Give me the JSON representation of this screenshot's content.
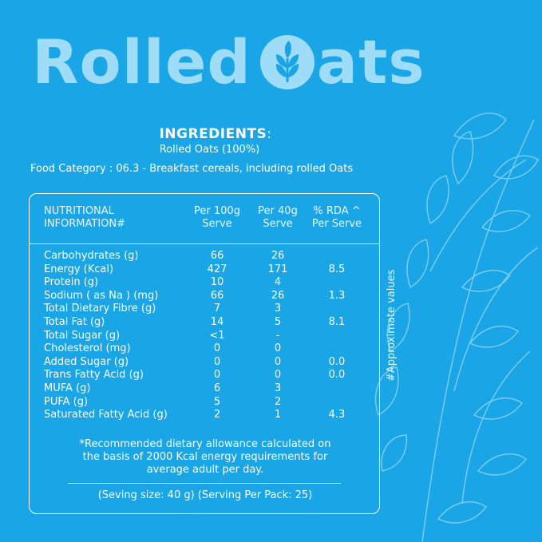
{
  "title": {
    "prefix": "Rolled ",
    "suffix": "ats"
  },
  "ingredients": {
    "heading": "INGREDIENTS",
    "colon": ":",
    "value": "Rolled Oats  (100%)"
  },
  "food_category": "Food Category : 06.3 - Breakfast cereals, including rolled Oats",
  "table": {
    "headers": {
      "nutritional_line1": "NUTRITIONAL",
      "nutritional_line2": "INFORMATION#",
      "per100_line1": "Per 100g",
      "per100_line2": "Serve",
      "per40_line1": "Per 40g",
      "per40_line2": "Serve",
      "rda_line1": "% RDA ^",
      "rda_line2": "Per Serve"
    },
    "rows": [
      {
        "name": "Carbohydrates (g)",
        "per100": "66",
        "per40": "26",
        "rda": ""
      },
      {
        "name": "Energy (Kcal)",
        "per100": "427",
        "per40": "171",
        "rda": "8.5"
      },
      {
        "name": "Protein (g)",
        "per100": "10",
        "per40": "4",
        "rda": ""
      },
      {
        "name": "Sodium ( as Na ) (mg)",
        "per100": "66",
        "per40": "26",
        "rda": "1.3"
      },
      {
        "name": "Total Dietary Fibre (g)",
        "per100": "7",
        "per40": "3",
        "rda": ""
      },
      {
        "name": "Total Fat (g)",
        "per100": "14",
        "per40": "5",
        "rda": "8.1"
      },
      {
        "name": "Total Sugar (g)",
        "per100": "<1",
        "per40": "-",
        "rda": ""
      },
      {
        "name": "Cholesterol (mg)",
        "per100": "0",
        "per40": "0",
        "rda": ""
      },
      {
        "name": "Added Sugar (g)",
        "per100": "0",
        "per40": "0",
        "rda": "0.0"
      },
      {
        "name": "Trans Fatty Acid (g)",
        "per100": "0",
        "per40": "0",
        "rda": "0.0"
      },
      {
        "name": "MUFA (g)",
        "per100": "6",
        "per40": "3",
        "rda": ""
      },
      {
        "name": "PUFA (g)",
        "per100": "5",
        "per40": "2",
        "rda": ""
      },
      {
        "name": "Saturated Fatty Acid (g)",
        "per100": "2",
        "per40": "1",
        "rda": "4.3"
      }
    ],
    "footnote_line1": "*Recommended dietary allowance calculated on",
    "footnote_line2": "the basis of 2000 Kcal energy requirements for",
    "footnote_line3": "average adult per day.",
    "serving": "(Seving size: 40 g) (Serving Per Pack: 25)"
  },
  "side_note": "#Approximate values",
  "colors": {
    "background": "#1aa6e6",
    "title": "#9fdcf8",
    "text": "#ffffff"
  },
  "icons": [
    "leaf-o-logo-icon",
    "oat-plant-illustration"
  ]
}
